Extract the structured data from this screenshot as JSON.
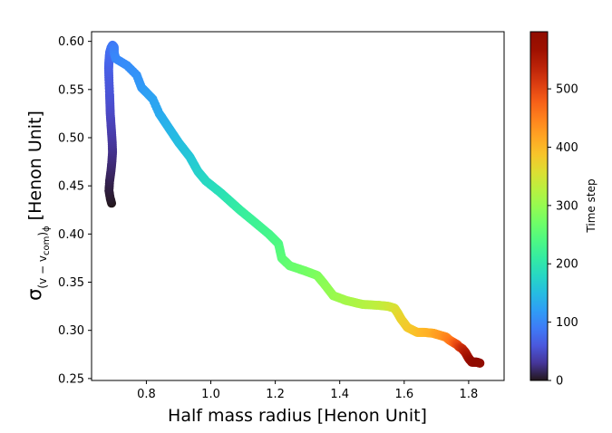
{
  "chart_data": {
    "type": "scatter",
    "xlabel": "Half mass radius [Henon Unit]",
    "ylabel_sym": "σ",
    "ylabel_sub": "(v − v",
    "ylabel_sub2": "com",
    "ylabel_sub3": ")",
    "ylabel_sub4": "ϕ",
    "ylabel_unit": " [Henon Unit]",
    "colorbar_label": "Time step",
    "colormap": "turbo",
    "xlim": [
      0.63,
      1.91
    ],
    "ylim": [
      0.248,
      0.61
    ],
    "clim": [
      0,
      598
    ],
    "x_ticks": [
      "0.8",
      "1.0",
      "1.2",
      "1.4",
      "1.6",
      "1.8"
    ],
    "x_tick_values": [
      0.8,
      1.0,
      1.2,
      1.4,
      1.6,
      1.8
    ],
    "y_ticks": [
      "0.25",
      "0.30",
      "0.35",
      "0.40",
      "0.45",
      "0.50",
      "0.55",
      "0.60"
    ],
    "y_tick_values": [
      0.25,
      0.3,
      0.35,
      0.4,
      0.45,
      0.5,
      0.55,
      0.6
    ],
    "c_ticks": [
      "0",
      "100",
      "200",
      "300",
      "400",
      "500"
    ],
    "c_tick_values": [
      0,
      100,
      200,
      300,
      400,
      500
    ],
    "grid": false,
    "trajectory_keypoints": {
      "t": [
        0,
        3,
        6,
        10,
        15,
        20,
        25,
        30,
        35,
        40,
        45,
        50,
        55,
        60,
        65,
        70,
        75,
        80,
        85,
        90,
        95,
        100,
        105,
        110,
        115,
        120,
        125,
        130,
        140,
        150,
        160,
        170,
        180,
        190,
        200,
        210,
        220,
        230,
        240,
        250,
        260,
        270,
        280,
        290,
        300,
        310,
        320,
        330,
        340,
        350,
        360,
        370,
        380,
        390,
        400,
        410,
        420,
        430,
        440,
        450,
        460,
        470,
        480,
        490,
        500,
        510,
        520,
        530,
        540,
        550,
        560,
        570,
        580,
        590,
        598
      ],
      "x": [
        0.692,
        0.688,
        0.684,
        0.686,
        0.69,
        0.693,
        0.695,
        0.694,
        0.692,
        0.69,
        0.688,
        0.687,
        0.686,
        0.684,
        0.683,
        0.684,
        0.686,
        0.69,
        0.695,
        0.7,
        0.7,
        0.705,
        0.74,
        0.77,
        0.785,
        0.8,
        0.82,
        0.84,
        0.87,
        0.9,
        0.935,
        0.96,
        0.985,
        1.03,
        1.06,
        1.09,
        1.13,
        1.18,
        1.21,
        1.22,
        1.245,
        1.29,
        1.33,
        1.35,
        1.38,
        1.42,
        1.47,
        1.52,
        1.55,
        1.57,
        1.58,
        1.59,
        1.61,
        1.64,
        1.66,
        1.69,
        1.7,
        1.72,
        1.73,
        1.74,
        1.75,
        1.755,
        1.76,
        1.765,
        1.77,
        1.775,
        1.78,
        1.785,
        1.79,
        1.795,
        1.8,
        1.805,
        1.81,
        1.825,
        1.835
      ],
      "y": [
        0.432,
        0.437,
        0.445,
        0.455,
        0.465,
        0.475,
        0.485,
        0.495,
        0.505,
        0.515,
        0.525,
        0.535,
        0.545,
        0.56,
        0.572,
        0.58,
        0.588,
        0.593,
        0.596,
        0.594,
        0.588,
        0.582,
        0.575,
        0.565,
        0.552,
        0.547,
        0.54,
        0.525,
        0.51,
        0.495,
        0.48,
        0.465,
        0.455,
        0.443,
        0.434,
        0.425,
        0.414,
        0.4,
        0.39,
        0.375,
        0.367,
        0.362,
        0.357,
        0.349,
        0.336,
        0.331,
        0.327,
        0.326,
        0.325,
        0.323,
        0.318,
        0.312,
        0.303,
        0.298,
        0.298,
        0.297,
        0.296,
        0.294,
        0.293,
        0.29,
        0.288,
        0.287,
        0.286,
        0.285,
        0.283,
        0.282,
        0.281,
        0.279,
        0.277,
        0.274,
        0.271,
        0.269,
        0.267,
        0.267,
        0.266
      ]
    }
  }
}
